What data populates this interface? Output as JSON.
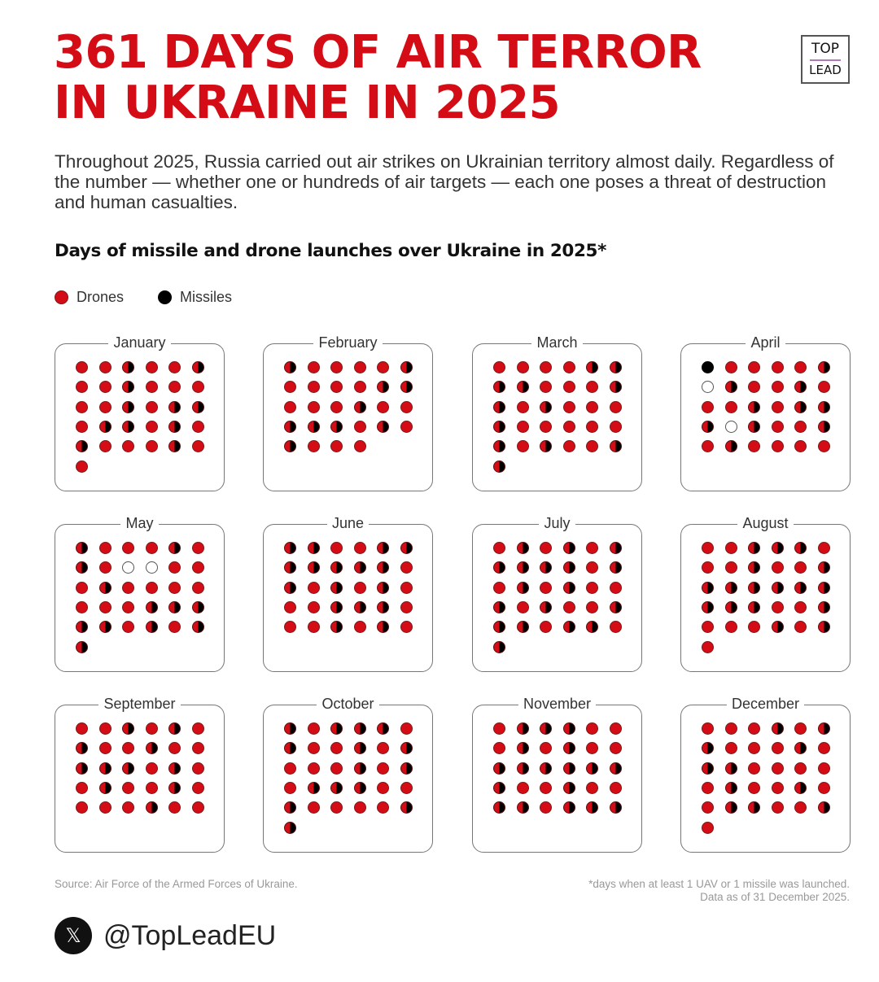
{
  "header": {
    "title_line1": "361 DAYS OF AIR TERROR",
    "title_line2": "IN UKRAINE IN 2025",
    "logo_top": "TOP",
    "logo_bottom": "LEAD",
    "intro": "Throughout 2025, Russia carried out air strikes on Ukrainian territory almost daily. Regardless of the number — whether one or hundreds of air targets — each one poses a threat of destruction and human casualties."
  },
  "chart_data": {
    "type": "calendar-dot-grid",
    "title": "Days of missile and drone launches over Ukraine in 2025*",
    "legend": [
      {
        "name": "Drones",
        "color": "#d40c16"
      },
      {
        "name": "Missiles",
        "color": "#000000"
      }
    ],
    "legend_placement": "top-left",
    "total_days_with_launches": 361,
    "months": [
      {
        "name": "January",
        "days": [
          "drones",
          "drones",
          "both",
          "drones",
          "drones",
          "both",
          "drones",
          "drones",
          "both",
          "drones",
          "drones",
          "drones",
          "drones",
          "drones",
          "both",
          "drones",
          "both",
          "both",
          "drones",
          "both",
          "both",
          "drones",
          "both",
          "drones",
          "both",
          "drones",
          "drones",
          "drones",
          "both",
          "drones",
          "drones"
        ]
      },
      {
        "name": "February",
        "days": [
          "both",
          "drones",
          "drones",
          "drones",
          "drones",
          "both",
          "drones",
          "drones",
          "drones",
          "drones",
          "both",
          "both",
          "drones",
          "drones",
          "drones",
          "both",
          "drones",
          "drones",
          "both",
          "both",
          "both",
          "drones",
          "both",
          "drones",
          "both",
          "drones",
          "drones",
          "drones"
        ]
      },
      {
        "name": "March",
        "days": [
          "drones",
          "drones",
          "drones",
          "drones",
          "both",
          "both",
          "both",
          "both",
          "drones",
          "drones",
          "drones",
          "both",
          "both",
          "drones",
          "both",
          "drones",
          "drones",
          "drones",
          "both",
          "drones",
          "drones",
          "drones",
          "drones",
          "drones",
          "both",
          "drones",
          "both",
          "drones",
          "drones",
          "both",
          "both"
        ]
      },
      {
        "name": "April",
        "days": [
          "missiles",
          "drones",
          "drones",
          "drones",
          "drones",
          "both",
          "none",
          "both",
          "drones",
          "drones",
          "both",
          "drones",
          "drones",
          "drones",
          "both",
          "drones",
          "both",
          "both",
          "both",
          "none",
          "both",
          "drones",
          "drones",
          "both",
          "drones",
          "both",
          "drones",
          "drones",
          "drones",
          "drones"
        ]
      },
      {
        "name": "May",
        "days": [
          "both",
          "drones",
          "drones",
          "drones",
          "both",
          "drones",
          "both",
          "drones",
          "none",
          "none",
          "drones",
          "drones",
          "drones",
          "both",
          "drones",
          "drones",
          "drones",
          "drones",
          "drones",
          "drones",
          "drones",
          "both",
          "both",
          "both",
          "both",
          "both",
          "drones",
          "both",
          "drones",
          "both",
          "both"
        ]
      },
      {
        "name": "June",
        "days": [
          "both",
          "both",
          "drones",
          "drones",
          "both",
          "both",
          "both",
          "both",
          "both",
          "both",
          "both",
          "drones",
          "both",
          "drones",
          "both",
          "drones",
          "both",
          "drones",
          "drones",
          "drones",
          "both",
          "both",
          "both",
          "drones",
          "drones",
          "drones",
          "both",
          "drones",
          "both",
          "drones"
        ]
      },
      {
        "name": "July",
        "days": [
          "drones",
          "both",
          "drones",
          "both",
          "drones",
          "both",
          "both",
          "both",
          "both",
          "both",
          "drones",
          "both",
          "drones",
          "both",
          "drones",
          "both",
          "drones",
          "drones",
          "both",
          "drones",
          "both",
          "drones",
          "drones",
          "both",
          "both",
          "both",
          "drones",
          "both",
          "both",
          "drones",
          "both"
        ]
      },
      {
        "name": "August",
        "days": [
          "drones",
          "drones",
          "both",
          "both",
          "both",
          "drones",
          "drones",
          "drones",
          "both",
          "drones",
          "drones",
          "both",
          "both",
          "both",
          "both",
          "both",
          "both",
          "both",
          "both",
          "both",
          "both",
          "drones",
          "drones",
          "both",
          "drones",
          "drones",
          "drones",
          "both",
          "drones",
          "both",
          "drones"
        ]
      },
      {
        "name": "September",
        "days": [
          "drones",
          "drones",
          "both",
          "drones",
          "both",
          "drones",
          "both",
          "drones",
          "drones",
          "both",
          "drones",
          "drones",
          "both",
          "both",
          "both",
          "drones",
          "both",
          "drones",
          "drones",
          "both",
          "drones",
          "drones",
          "both",
          "drones",
          "drones",
          "drones",
          "drones",
          "both",
          "drones",
          "drones"
        ]
      },
      {
        "name": "October",
        "days": [
          "both",
          "drones",
          "both",
          "both",
          "both",
          "drones",
          "both",
          "drones",
          "drones",
          "both",
          "drones",
          "both",
          "drones",
          "drones",
          "drones",
          "both",
          "drones",
          "both",
          "drones",
          "both",
          "both",
          "both",
          "drones",
          "drones",
          "both",
          "drones",
          "drones",
          "drones",
          "drones",
          "both",
          "both"
        ]
      },
      {
        "name": "November",
        "days": [
          "drones",
          "both",
          "both",
          "both",
          "drones",
          "drones",
          "drones",
          "both",
          "drones",
          "both",
          "drones",
          "drones",
          "both",
          "both",
          "both",
          "both",
          "both",
          "both",
          "both",
          "drones",
          "drones",
          "both",
          "drones",
          "drones",
          "both",
          "both",
          "drones",
          "both",
          "both",
          "both"
        ]
      },
      {
        "name": "December",
        "days": [
          "drones",
          "drones",
          "drones",
          "both",
          "drones",
          "both",
          "both",
          "drones",
          "drones",
          "drones",
          "both",
          "drones",
          "both",
          "both",
          "drones",
          "drones",
          "drones",
          "drones",
          "drones",
          "both",
          "drones",
          "drones",
          "both",
          "drones",
          "drones",
          "both",
          "both",
          "drones",
          "drones",
          "both",
          "drones"
        ]
      }
    ]
  },
  "footer": {
    "source": "Source: Air Force of the Armed Forces of Ukraine.",
    "note_line1": "*days when at least 1 UAV or 1 missile was launched.",
    "note_line2": "Data as of 31 December 2025.",
    "social_icon": "x-logo-icon",
    "handle": "@TopLeadEU"
  }
}
